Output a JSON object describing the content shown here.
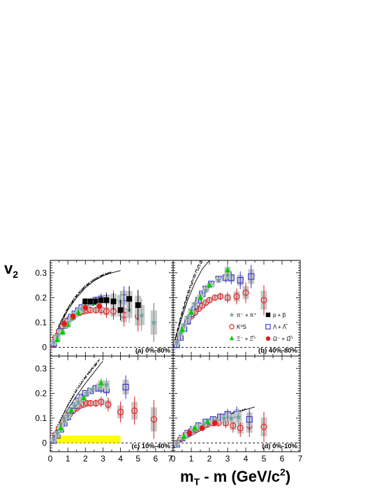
{
  "chart_data": {
    "type": "scatter",
    "ylabel": "v",
    "ylabel_sub": "2",
    "xlabel": "m",
    "xlabel_sub": "T",
    "xlabel_rest": " - m (GeV/c",
    "xlabel_sup": "2",
    "xlabel_end": ")",
    "xlim": [
      0,
      7
    ],
    "ylim": [
      -0.035,
      0.35
    ],
    "x_ticks": [
      "0",
      "1",
      "2",
      "3",
      "4",
      "5",
      "6",
      "7"
    ],
    "x_ticks_last_left": "7",
    "y_ticks": [
      "0",
      "0.1",
      "0.2",
      "0.3"
    ],
    "legend_placement": "inside panel (b), lower right",
    "legend": [
      {
        "key": "pion",
        "label": "π⁻ + π⁺",
        "marker": "star",
        "color": "#6f9f9f"
      },
      {
        "key": "proton",
        "label": "p + p̅",
        "marker": "filled-square",
        "color": "#000000"
      },
      {
        "key": "kaon",
        "label": "K⁰S",
        "marker": "open-circle",
        "color": "#e41a1c"
      },
      {
        "key": "lambda",
        "label": "Λ + Λ̅",
        "marker": "open-square",
        "color": "#3333cc"
      },
      {
        "key": "xi",
        "label": "Ξ⁻ + Ξ̅⁺",
        "marker": "filled-triangle",
        "color": "#00cc00"
      },
      {
        "key": "omega",
        "label": "Ω⁻ + Ω̅⁺",
        "marker": "filled-circle",
        "color": "#e41a1c"
      }
    ],
    "panels": [
      {
        "id": "a",
        "label": "(a) 0%-80%",
        "series": {
          "pion": {
            "x": [
              0.2,
              0.4,
              0.6,
              0.8,
              1.0,
              1.2,
              1.4,
              1.6,
              1.8,
              2.0,
              2.2,
              2.5,
              2.8,
              3.2,
              3.6,
              4.0,
              4.5,
              5.2,
              5.9
            ],
            "y": [
              0.022,
              0.045,
              0.065,
              0.085,
              0.1,
              0.115,
              0.13,
              0.14,
              0.155,
              0.165,
              0.175,
              0.18,
              0.185,
              0.19,
              0.19,
              0.185,
              0.15,
              0.13,
              0.1
            ]
          },
          "proton": {
            "x": [
              2.0,
              2.3,
              2.6,
              2.9,
              3.2,
              3.6,
              4.0,
              4.5,
              5.0
            ],
            "y": [
              0.185,
              0.185,
              0.185,
              0.19,
              0.19,
              0.185,
              0.15,
              0.195,
              0.17
            ]
          },
          "kaon": {
            "x": [
              0.1,
              0.3,
              0.5,
              0.7,
              0.9,
              1.1,
              1.3,
              1.5,
              1.7,
              1.9,
              2.1,
              2.3,
              2.6,
              2.9,
              3.2,
              3.6,
              4.2,
              5.0,
              5.9
            ],
            "y": [
              0.01,
              0.04,
              0.065,
              0.085,
              0.1,
              0.115,
              0.125,
              0.135,
              0.14,
              0.145,
              0.148,
              0.15,
              0.15,
              0.15,
              0.145,
              0.145,
              0.13,
              0.125,
              0.1
            ]
          },
          "lambda": {
            "x": [
              0.2,
              0.4,
              0.6,
              0.8,
              1.0,
              1.2,
              1.4,
              1.6,
              1.8,
              2.0,
              2.3,
              2.6,
              2.9,
              3.2,
              3.6,
              4.2
            ],
            "y": [
              0.015,
              0.04,
              0.065,
              0.088,
              0.105,
              0.122,
              0.135,
              0.148,
              0.16,
              0.17,
              0.18,
              0.19,
              0.195,
              0.195,
              0.195,
              0.2
            ]
          },
          "xi": {
            "x": [
              0.4,
              0.7,
              1.0,
              1.3,
              1.6,
              2.0,
              2.5
            ],
            "y": [
              0.03,
              0.06,
              0.09,
              0.12,
              0.14,
              0.16,
              0.18
            ]
          },
          "omega": {
            "x": [
              0.8,
              1.3,
              2.0,
              2.8
            ],
            "y": [
              0.095,
              0.125,
              0.16,
              0.165
            ]
          }
        },
        "curves": [
          {
            "style": "solid",
            "x": [
              0,
              0.5,
              1,
              1.5,
              2,
              2.5,
              3,
              3.5,
              4.0
            ],
            "y": [
              0,
              0.08,
              0.15,
              0.2,
              0.24,
              0.268,
              0.288,
              0.3,
              0.309
            ]
          },
          {
            "style": "dashed",
            "x": [
              0,
              0.5,
              1,
              1.5,
              2,
              2.5,
              3,
              3.3
            ],
            "y": [
              0,
              0.09,
              0.16,
              0.21,
              0.248,
              0.272,
              0.29,
              0.298
            ]
          },
          {
            "style": "dotted",
            "x": [
              0,
              0.5,
              1,
              1.5,
              2,
              2.5,
              3,
              3.5
            ],
            "y": [
              0,
              0.09,
              0.16,
              0.212,
              0.25,
              0.276,
              0.294,
              0.305
            ]
          },
          {
            "style": "dashdot",
            "x": [
              0,
              0.5,
              1,
              1.5,
              2,
              2.5,
              3,
              3.5
            ],
            "y": [
              0,
              0.085,
              0.155,
              0.205,
              0.245,
              0.272,
              0.292,
              0.303
            ]
          }
        ]
      },
      {
        "id": "b",
        "label": "(b) 40%-80%",
        "series": {
          "pion": {
            "x": [
              0.2,
              0.4,
              0.6,
              0.8,
              1.0,
              1.2,
              1.5,
              1.8,
              2.1,
              2.5,
              3.0
            ],
            "y": [
              0.02,
              0.055,
              0.09,
              0.12,
              0.15,
              0.175,
              0.205,
              0.23,
              0.25,
              0.27,
              0.29
            ]
          },
          "kaon": {
            "x": [
              0.2,
              0.4,
              0.6,
              0.8,
              1.0,
              1.2,
              1.4,
              1.6,
              1.8,
              2.0,
              2.3,
              2.6,
              3.0,
              3.5,
              4.0,
              5.0
            ],
            "y": [
              0.02,
              0.05,
              0.08,
              0.105,
              0.125,
              0.14,
              0.155,
              0.168,
              0.18,
              0.19,
              0.2,
              0.205,
              0.2,
              0.205,
              0.22,
              0.19
            ]
          },
          "lambda": {
            "x": [
              0.2,
              0.4,
              0.6,
              0.8,
              1.0,
              1.2,
              1.4,
              1.6,
              1.8,
              2.1,
              2.5,
              2.9,
              3.2,
              3.7,
              4.3
            ],
            "y": [
              0.01,
              0.04,
              0.075,
              0.105,
              0.135,
              0.165,
              0.19,
              0.215,
              0.235,
              0.255,
              0.275,
              0.28,
              0.28,
              0.27,
              0.285
            ]
          },
          "xi": {
            "x": [
              0.5,
              1.0,
              1.5,
              2.0,
              3.0
            ],
            "y": [
              0.07,
              0.14,
              0.2,
              0.25,
              0.31
            ]
          }
        },
        "curves": [
          {
            "style": "solid",
            "x": [
              0,
              0.4,
              0.8,
              1.2,
              1.6,
              2.0
            ],
            "y": [
              0,
              0.1,
              0.19,
              0.26,
              0.315,
              0.35
            ]
          },
          {
            "style": "dashed",
            "x": [
              0,
              0.4,
              0.8,
              1.2,
              1.5
            ],
            "y": [
              0,
              0.12,
              0.22,
              0.3,
              0.35
            ]
          },
          {
            "style": "dotted",
            "x": [
              0,
              0.4,
              0.8,
              1.2,
              1.6
            ],
            "y": [
              0,
              0.115,
              0.215,
              0.3,
              0.35
            ]
          },
          {
            "style": "dashdot",
            "x": [
              0,
              0.4,
              0.8,
              1.2,
              1.6
            ],
            "y": [
              0,
              0.11,
              0.205,
              0.285,
              0.345
            ]
          }
        ]
      },
      {
        "id": "c",
        "label": "(c) 10%-40%",
        "series": {
          "pion": {
            "x": [
              0.2,
              0.4,
              0.6,
              0.8,
              1.0,
              1.2,
              1.4,
              1.6,
              1.8,
              2.1,
              2.4,
              2.8,
              3.2
            ],
            "y": [
              0.015,
              0.04,
              0.065,
              0.09,
              0.11,
              0.13,
              0.15,
              0.165,
              0.18,
              0.2,
              0.215,
              0.23,
              0.235
            ]
          },
          "kaon": {
            "x": [
              0.1,
              0.3,
              0.5,
              0.7,
              0.9,
              1.1,
              1.3,
              1.5,
              1.7,
              1.9,
              2.1,
              2.3,
              2.6,
              2.9,
              3.3,
              4.0,
              4.8,
              5.9
            ],
            "y": [
              0.01,
              0.035,
              0.06,
              0.08,
              0.1,
              0.115,
              0.13,
              0.14,
              0.15,
              0.155,
              0.16,
              0.16,
              0.16,
              0.165,
              0.155,
              0.125,
              0.13,
              0.095
            ]
          },
          "lambda": {
            "x": [
              0.2,
              0.4,
              0.6,
              0.8,
              1.0,
              1.2,
              1.4,
              1.6,
              1.8,
              2.0,
              2.3,
              2.6,
              2.9,
              3.2,
              4.3
            ],
            "y": [
              0.01,
              0.03,
              0.055,
              0.08,
              0.105,
              0.13,
              0.15,
              0.17,
              0.185,
              0.2,
              0.21,
              0.22,
              0.22,
              0.215,
              0.225
            ]
          },
          "xi": {
            "x": [
              0.6,
              1.2,
              1.9,
              2.9
            ],
            "y": [
              0.06,
              0.13,
              0.18,
              0.24
            ]
          }
        },
        "curves": [
          {
            "style": "solid",
            "x": [
              0,
              0.5,
              1,
              1.5,
              2,
              2.5,
              3.0
            ],
            "y": [
              0,
              0.07,
              0.135,
              0.19,
              0.24,
              0.285,
              0.33
            ]
          },
          {
            "style": "dashed",
            "x": [
              0,
              0.5,
              1,
              1.5,
              2,
              2.5,
              2.8
            ],
            "y": [
              0,
              0.08,
              0.15,
              0.21,
              0.265,
              0.31,
              0.335
            ]
          },
          {
            "style": "dotted",
            "x": [
              0,
              0.5,
              1,
              1.5,
              2,
              2.4,
              2.8
            ],
            "y": [
              0,
              0.085,
              0.155,
              0.22,
              0.27,
              0.305,
              0.34
            ]
          },
          {
            "style": "dashdot",
            "x": [
              0,
              0.5,
              1,
              1.5,
              2,
              2.5,
              2.8
            ],
            "y": [
              0,
              0.08,
              0.15,
              0.212,
              0.262,
              0.305,
              0.33
            ]
          }
        ],
        "band": {
          "x": [
            0.2,
            4.0
          ],
          "y_low": 0.0,
          "y_high": 0.03,
          "color": "#ffff00"
        }
      },
      {
        "id": "d",
        "label": "(d) 0%-10%",
        "series": {
          "pion": {
            "x": [
              0.2,
              0.5,
              0.8,
              1.1,
              1.4,
              1.7,
              2.0,
              2.4,
              2.8,
              3.2,
              3.6
            ],
            "y": [
              0.0,
              0.02,
              0.04,
              0.055,
              0.065,
              0.075,
              0.085,
              0.09,
              0.1,
              0.1,
              0.105
            ]
          },
          "kaon": {
            "x": [
              0.2,
              0.4,
              0.7,
              1.0,
              1.3,
              1.6,
              1.9,
              2.2,
              2.5,
              2.9,
              3.3,
              3.7,
              4.2,
              5.0
            ],
            "y": [
              0.0,
              0.015,
              0.035,
              0.05,
              0.06,
              0.07,
              0.075,
              0.08,
              0.08,
              0.08,
              0.07,
              0.06,
              0.07,
              0.065
            ]
          },
          "lambda": {
            "x": [
              0.2,
              0.5,
              0.8,
              1.1,
              1.4,
              1.8,
              2.2,
              2.6,
              3.0,
              3.5,
              4.2
            ],
            "y": [
              -0.005,
              0.02,
              0.04,
              0.055,
              0.07,
              0.085,
              0.095,
              0.105,
              0.115,
              0.115,
              0.095
            ]
          },
          "xi": {
            "x": [
              0.6,
              1.2,
              1.9
            ],
            "y": [
              0.025,
              0.06,
              0.085
            ]
          },
          "omega": {
            "x": [
              0.9,
              1.6,
              2.3
            ],
            "y": [
              0.04,
              0.06,
              0.08
            ]
          }
        },
        "curves": [
          {
            "style": "solid",
            "x": [
              0,
              0.5,
              1,
              1.5,
              2,
              2.5,
              3,
              3.5,
              4.0,
              4.5
            ],
            "y": [
              -0.01,
              0.01,
              0.03,
              0.05,
              0.07,
              0.088,
              0.105,
              0.12,
              0.135,
              0.145
            ]
          },
          {
            "style": "dashed",
            "x": [
              0,
              0.5,
              1,
              1.5,
              2,
              2.5,
              3,
              3.5,
              4.0
            ],
            "y": [
              -0.01,
              0.015,
              0.04,
              0.06,
              0.08,
              0.098,
              0.112,
              0.125,
              0.135
            ]
          },
          {
            "style": "dotted",
            "x": [
              0,
              0.5,
              1,
              1.5,
              2,
              2.5,
              3,
              3.5,
              4.0
            ],
            "y": [
              -0.01,
              0.018,
              0.043,
              0.065,
              0.085,
              0.102,
              0.115,
              0.128,
              0.138
            ]
          },
          {
            "style": "dashdot",
            "x": [
              0,
              0.5,
              1,
              1.5,
              2,
              2.5,
              3,
              3.5,
              4.0
            ],
            "y": [
              -0.01,
              0.016,
              0.041,
              0.062,
              0.082,
              0.1,
              0.113,
              0.126,
              0.136
            ]
          }
        ]
      }
    ]
  }
}
